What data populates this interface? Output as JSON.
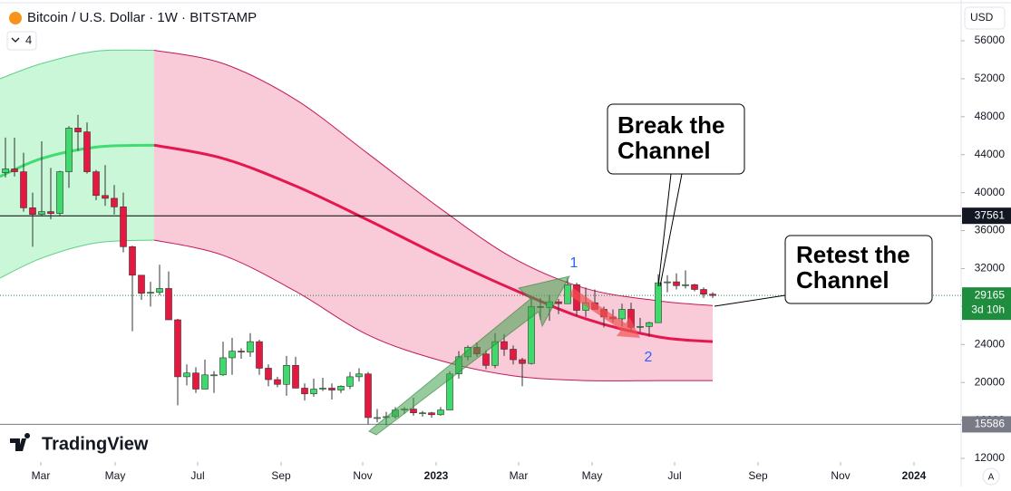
{
  "chart_data": {
    "type": "candlestick",
    "title": "Bitcoin / U.S. Dollar · 1W · BITSTAMP",
    "indicator_count": "4",
    "currency": "USD",
    "brand": "TradingView",
    "auto_scale": "A",
    "up_color": "#3ddc6a",
    "down_color": "#e8173f",
    "categories": [
      null,
      null,
      null,
      null,
      null,
      null,
      null,
      null,
      null,
      null,
      null,
      null,
      null,
      null,
      null,
      null,
      null,
      null,
      null,
      null,
      null,
      null,
      null,
      null,
      null,
      null,
      null,
      null,
      null,
      null,
      null,
      null,
      null,
      null,
      null,
      null,
      null,
      null,
      null,
      null,
      null,
      null,
      null,
      null,
      null,
      null,
      null,
      null,
      null,
      null,
      null,
      null,
      null,
      null,
      null,
      null,
      null,
      null,
      null,
      null,
      null,
      null,
      null,
      null,
      null,
      null,
      null,
      null,
      null,
      null,
      null,
      null,
      null,
      null,
      null,
      null,
      null,
      null,
      null
    ],
    "open": [
      42100,
      42500,
      42200,
      38400,
      37700,
      38000,
      37800,
      42200,
      46800,
      46400,
      42200,
      39700,
      39400,
      38500,
      34300,
      31300,
      29400,
      29500,
      29900,
      26600,
      20600,
      21000,
      19300,
      20800,
      20800,
      22600,
      23300,
      23200,
      24300,
      21500,
      20300,
      19800,
      21800,
      19400,
      18800,
      19300,
      19400,
      19200,
      19600,
      20600,
      20900,
      16300,
      16300,
      16400,
      17100,
      17200,
      16800,
      16800,
      16600,
      17100,
      20900,
      22700,
      23700,
      23000,
      21800,
      24300,
      23500,
      22400,
      22000,
      28000,
      27900,
      28500,
      28300,
      30300,
      27600,
      28400,
      27700,
      26900,
      26700,
      27700,
      25800,
      25900,
      26300,
      30500,
      30600,
      30200,
      30300,
      29800,
      29300
    ],
    "high": [
      45800,
      45800,
      44200,
      40000,
      45400,
      42600,
      42300,
      47000,
      48200,
      47400,
      42400,
      42900,
      40800,
      40000,
      34400,
      31300,
      30600,
      32400,
      31700,
      26700,
      21900,
      21600,
      22400,
      21200,
      24300,
      24700,
      23600,
      25200,
      24500,
      21900,
      20600,
      22800,
      22700,
      19900,
      20400,
      20500,
      19900,
      19700,
      21100,
      21500,
      21100,
      17200,
      16900,
      17400,
      17400,
      18400,
      17000,
      16900,
      17400,
      21200,
      23300,
      23900,
      24200,
      23400,
      25200,
      25100,
      23900,
      22600,
      28800,
      28900,
      29200,
      28800,
      31000,
      30500,
      30000,
      29800,
      28000,
      27700,
      28300,
      28400,
      26800,
      26400,
      31400,
      31300,
      31500,
      31800,
      30400,
      30000,
      29500
    ],
    "low": [
      41600,
      41700,
      38000,
      34300,
      37500,
      37200,
      37600,
      40500,
      44400,
      42000,
      39200,
      38600,
      37700,
      33700,
      25400,
      28700,
      28000,
      29200,
      26600,
      17600,
      19700,
      18900,
      19300,
      18900,
      20700,
      20800,
      22500,
      22700,
      20800,
      19600,
      19500,
      18600,
      19400,
      18100,
      18500,
      19100,
      18200,
      18900,
      19300,
      20100,
      15600,
      15800,
      15500,
      16200,
      16700,
      16500,
      16400,
      16300,
      16500,
      17100,
      20400,
      22300,
      22700,
      21400,
      21500,
      22800,
      21900,
      19600,
      21900,
      26600,
      26500,
      27200,
      28300,
      27000,
      26900,
      27700,
      25800,
      26300,
      25900,
      25400,
      25300,
      24800,
      26300,
      29500,
      29800,
      29900,
      29600,
      28900,
      28900
    ],
    "close": [
      42500,
      42200,
      38400,
      37700,
      38000,
      37800,
      42200,
      46800,
      46400,
      42200,
      39700,
      39400,
      38500,
      34300,
      31300,
      29400,
      29500,
      29900,
      26600,
      20600,
      21000,
      19300,
      20800,
      20800,
      22600,
      23300,
      23200,
      24300,
      21500,
      20300,
      19800,
      21800,
      19400,
      18800,
      19300,
      19400,
      19200,
      19600,
      20600,
      20900,
      16300,
      16300,
      16400,
      17100,
      17200,
      16800,
      16800,
      16600,
      17100,
      20900,
      22700,
      23700,
      23000,
      21800,
      24300,
      23500,
      22400,
      22000,
      28000,
      27900,
      28500,
      28300,
      30300,
      27600,
      28400,
      27700,
      26900,
      26700,
      27700,
      25800,
      25900,
      26300,
      30500,
      30600,
      30200,
      30300,
      29800,
      29300,
      29165
    ],
    "xlim": [
      -0.6,
      105.4
    ],
    "xticks": [
      {
        "value": 3.9,
        "label": "Mar"
      },
      {
        "value": 12.1,
        "label": "May"
      },
      {
        "value": 21.2,
        "label": "Jul"
      },
      {
        "value": 30.4,
        "label": "Sep"
      },
      {
        "value": 39.4,
        "label": "Nov"
      },
      {
        "value": 47.5,
        "label": "2023"
      },
      {
        "value": 56.6,
        "label": "Mar"
      },
      {
        "value": 64.7,
        "label": "May"
      },
      {
        "value": 73.8,
        "label": "Jul"
      },
      {
        "value": 83,
        "label": "Sep"
      },
      {
        "value": 92.1,
        "label": "Nov"
      },
      {
        "value": 100.2,
        "label": "2024"
      }
    ],
    "ylim": [
      11141,
      60295
    ],
    "yticks": [
      12000,
      16000,
      20000,
      24000,
      28000,
      32000,
      36000,
      40000,
      44000,
      48000,
      52000,
      56000
    ],
    "channel": [
      {
        "fill": "#c9f7d8",
        "edge": "#5fcf86",
        "mid_color": "#3fdc6f",
        "x": [
          -0.6,
          4,
          10,
          16.4
        ],
        "upper": [
          52000,
          53600,
          54900,
          55000
        ],
        "middle": [
          41700,
          43600,
          44800,
          45000
        ],
        "lower": [
          31000,
          33100,
          34700,
          35000
        ]
      },
      {
        "fill": "#f9cbd8",
        "edge": "#c2185b",
        "mid_color": "#e5174f",
        "x": [
          16.4,
          24,
          32,
          40,
          48,
          56,
          64,
          72,
          78
        ],
        "upper": [
          55000,
          53600,
          49800,
          44100,
          38300,
          33100,
          29900,
          28600,
          28100
        ],
        "middle": [
          45000,
          43600,
          40700,
          37100,
          33300,
          29800,
          26700,
          24800,
          24300
        ],
        "lower": [
          35000,
          33400,
          29600,
          25000,
          22300,
          20700,
          20200,
          20200,
          20200
        ]
      }
    ],
    "price_lines": [
      {
        "value": 37561,
        "color": "#000000",
        "label_bg": "#131722"
      },
      {
        "value": 15586,
        "color": "#787b86",
        "label_bg": "#787b86"
      }
    ],
    "last_price": {
      "value": 29165,
      "countdown": "3d 10h",
      "color": "#1e8e3e"
    },
    "annotations": [
      {
        "lines": [
          "Break the",
          "Channel"
        ]
      },
      {
        "lines": [
          "Retest the",
          "Channel"
        ]
      },
      {
        "text": "1",
        "color": "#2962ff"
      },
      {
        "text": "2",
        "color": "#2962ff"
      }
    ]
  }
}
